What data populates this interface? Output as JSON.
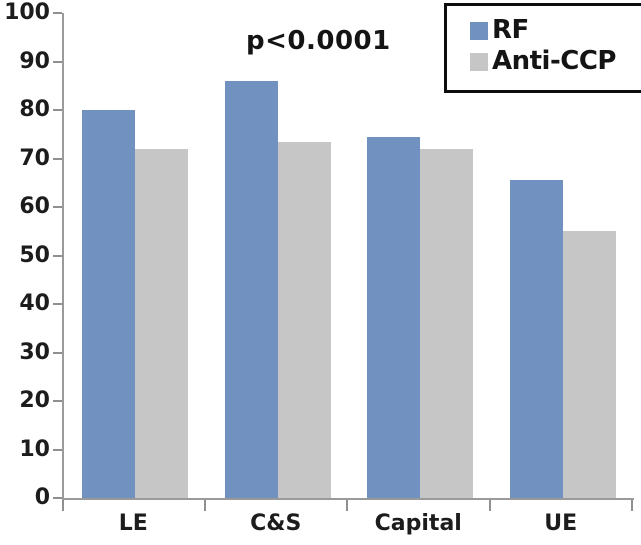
{
  "chart_data": {
    "type": "bar",
    "title": "",
    "xlabel": "",
    "ylabel": "",
    "categories": [
      "LE",
      "C&S",
      "Capital",
      "UE"
    ],
    "series": [
      {
        "name": "RF",
        "color": "#7191c1",
        "values": [
          80,
          86,
          74.5,
          65.5
        ]
      },
      {
        "name": "Anti-CCP",
        "color": "#c6c6c6",
        "values": [
          72,
          73.5,
          72,
          55
        ]
      }
    ],
    "annotation": "p<0.0001",
    "ylim": [
      0,
      100
    ],
    "yticks": [
      0,
      10,
      20,
      30,
      40,
      50,
      60,
      70,
      80,
      90,
      100
    ],
    "grid": false,
    "legend_position": "top-right"
  },
  "colors": {
    "axis_line": "#9a9a9a",
    "tick": "#8f8f8f",
    "text": "#1c1c1c",
    "legend_border": "#0d0d0d",
    "background": "#ffffff"
  }
}
